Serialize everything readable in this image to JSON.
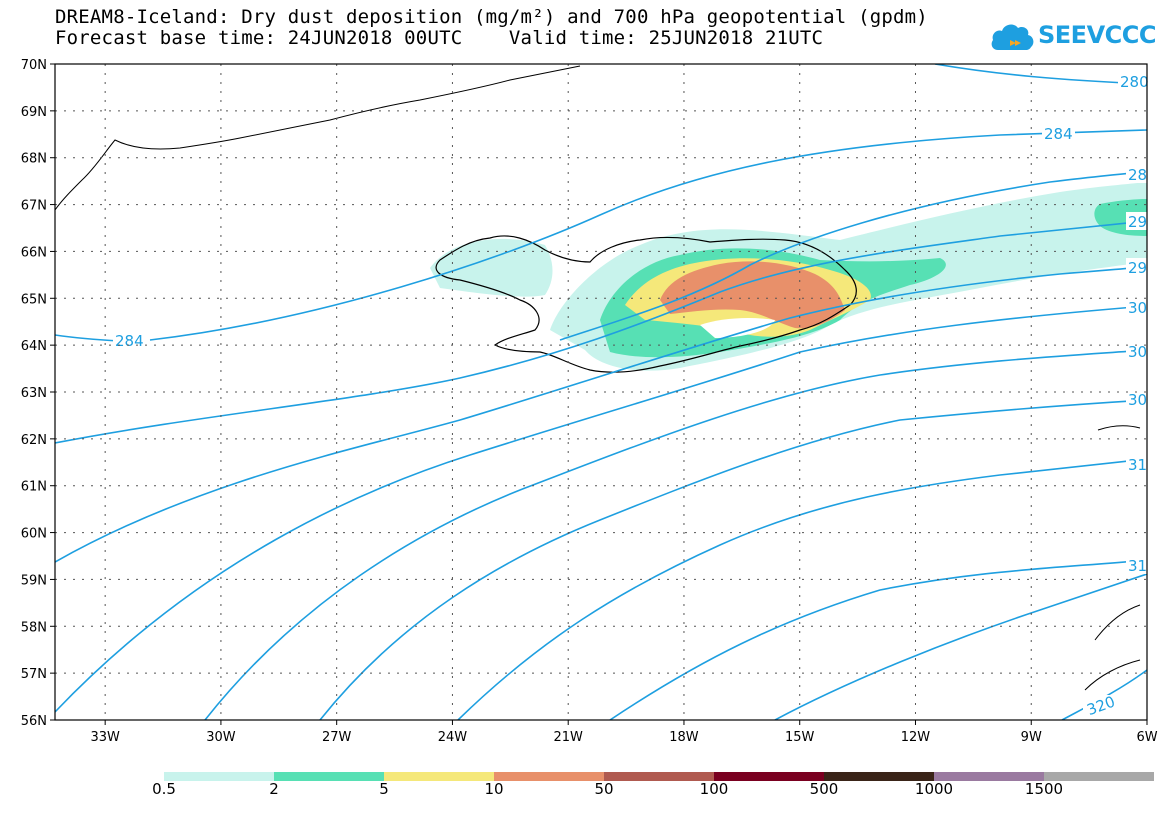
{
  "header": {
    "title_line1": "DREAM8-Iceland: Dry dust deposition (mg/m²) and 700 hPa geopotential (gpdm)",
    "title_line2": "Forecast base time: 24JUN2018 00UTC    Valid time: 25JUN2018 21UTC",
    "logo_text": "SEEVCCC",
    "logo_icon": "cloud-icon"
  },
  "map": {
    "lat_labels": [
      "70N",
      "69N",
      "68N",
      "67N",
      "66N",
      "65N",
      "64N",
      "63N",
      "62N",
      "61N",
      "60N",
      "59N",
      "58N",
      "57N",
      "56N"
    ],
    "lon_labels": [
      "33W",
      "30W",
      "27W",
      "24W",
      "21W",
      "18W",
      "15W",
      "12W",
      "9W",
      "6W"
    ],
    "lat_range": [
      56,
      70
    ],
    "lon_range": [
      -34.3,
      -6
    ],
    "grid": "dotted",
    "contour_color": "#1e9fe0",
    "contour_labels": [
      "280",
      "284",
      "28",
      "29",
      "284",
      "29",
      "30",
      "30",
      "30",
      "31",
      "31",
      "320"
    ]
  },
  "legend": {
    "labels": [
      "0.5",
      "2",
      "5",
      "10",
      "50",
      "100",
      "500",
      "1000",
      "1500"
    ],
    "colors": [
      "#c8f3ec",
      "#57e0b4",
      "#f5e87a",
      "#e8906a",
      "#b05a50",
      "#7a0020",
      "#3a2418",
      "#9a7aa0",
      "#a8a8a8"
    ]
  }
}
